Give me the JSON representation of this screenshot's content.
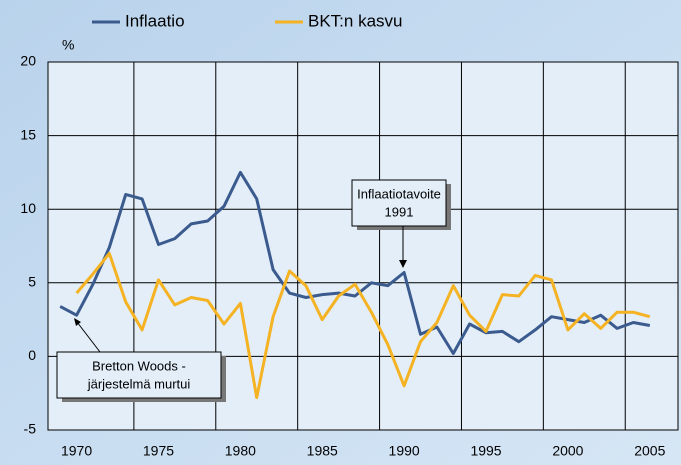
{
  "chart_data": {
    "type": "line",
    "y_unit": "%",
    "categories": [
      null,
      "1970",
      null,
      null,
      null,
      null,
      "1975",
      null,
      null,
      null,
      null,
      "1980",
      null,
      null,
      null,
      null,
      "1985",
      null,
      null,
      null,
      null,
      "1990",
      null,
      null,
      null,
      null,
      "1995",
      null,
      null,
      null,
      null,
      "2000",
      null,
      null,
      null,
      null,
      "2005"
    ],
    "series": [
      {
        "name": "Inflaatio",
        "color": "#3b5b8e",
        "values": [
          3.4,
          2.8,
          4.9,
          7.4,
          11.0,
          10.7,
          7.6,
          8.0,
          9.0,
          9.2,
          10.2,
          12.5,
          10.7,
          5.9,
          4.3,
          4.0,
          4.2,
          4.3,
          4.1,
          5.0,
          4.8,
          5.7,
          1.5,
          2.0,
          0.2,
          2.2,
          1.6,
          1.7,
          1.0,
          1.8,
          2.7,
          2.5,
          2.3,
          2.8,
          1.9,
          2.3,
          2.1
        ]
      },
      {
        "name": "BKT:n kasvu",
        "color": "#f5b324",
        "values": [
          null,
          4.3,
          5.6,
          7.0,
          3.7,
          1.8,
          5.2,
          3.5,
          4.0,
          3.8,
          2.2,
          3.6,
          -2.8,
          2.7,
          5.8,
          4.8,
          2.5,
          4.1,
          4.9,
          3.0,
          0.8,
          -2.0,
          1.0,
          2.3,
          4.8,
          2.8,
          1.7,
          4.2,
          4.1,
          5.5,
          5.2,
          1.8,
          2.9,
          1.9,
          3.0,
          3.0,
          2.7
        ]
      }
    ],
    "ylim": [
      -5,
      20
    ],
    "yticks": [
      -5,
      0,
      5,
      10,
      15,
      20
    ],
    "grid": true,
    "legend": "top",
    "annotations": [
      {
        "lines": [
          "Inflaatiotavoite",
          "1991"
        ]
      },
      {
        "lines": [
          "Bretton Woods -",
          "järjestelmä murtui"
        ]
      }
    ]
  }
}
